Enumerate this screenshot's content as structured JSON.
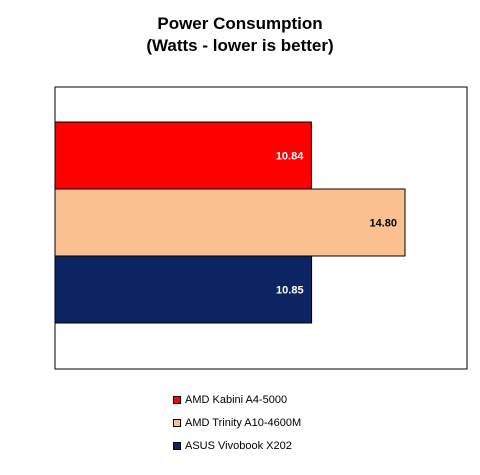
{
  "chart_data": {
    "type": "bar",
    "orientation": "horizontal",
    "title": "Power Consumption",
    "subtitle": "(Watts - lower is better)",
    "xlim": [
      0,
      16
    ],
    "grid": false,
    "legend_position": "bottom",
    "series": [
      {
        "name": "AMD Kabini A4-5000",
        "value": 10.84,
        "label": "10.84",
        "color": "#ff0000",
        "label_color": "#ffffff"
      },
      {
        "name": "AMD Trinity A10-4600M",
        "value": 14.8,
        "label": "14.80",
        "color": "#fac090",
        "label_color": "#000000"
      },
      {
        "name": "ASUS Vivobook X202",
        "value": 10.85,
        "label": "10.85",
        "color": "#0c2461",
        "label_color": "#ffffff"
      }
    ]
  }
}
